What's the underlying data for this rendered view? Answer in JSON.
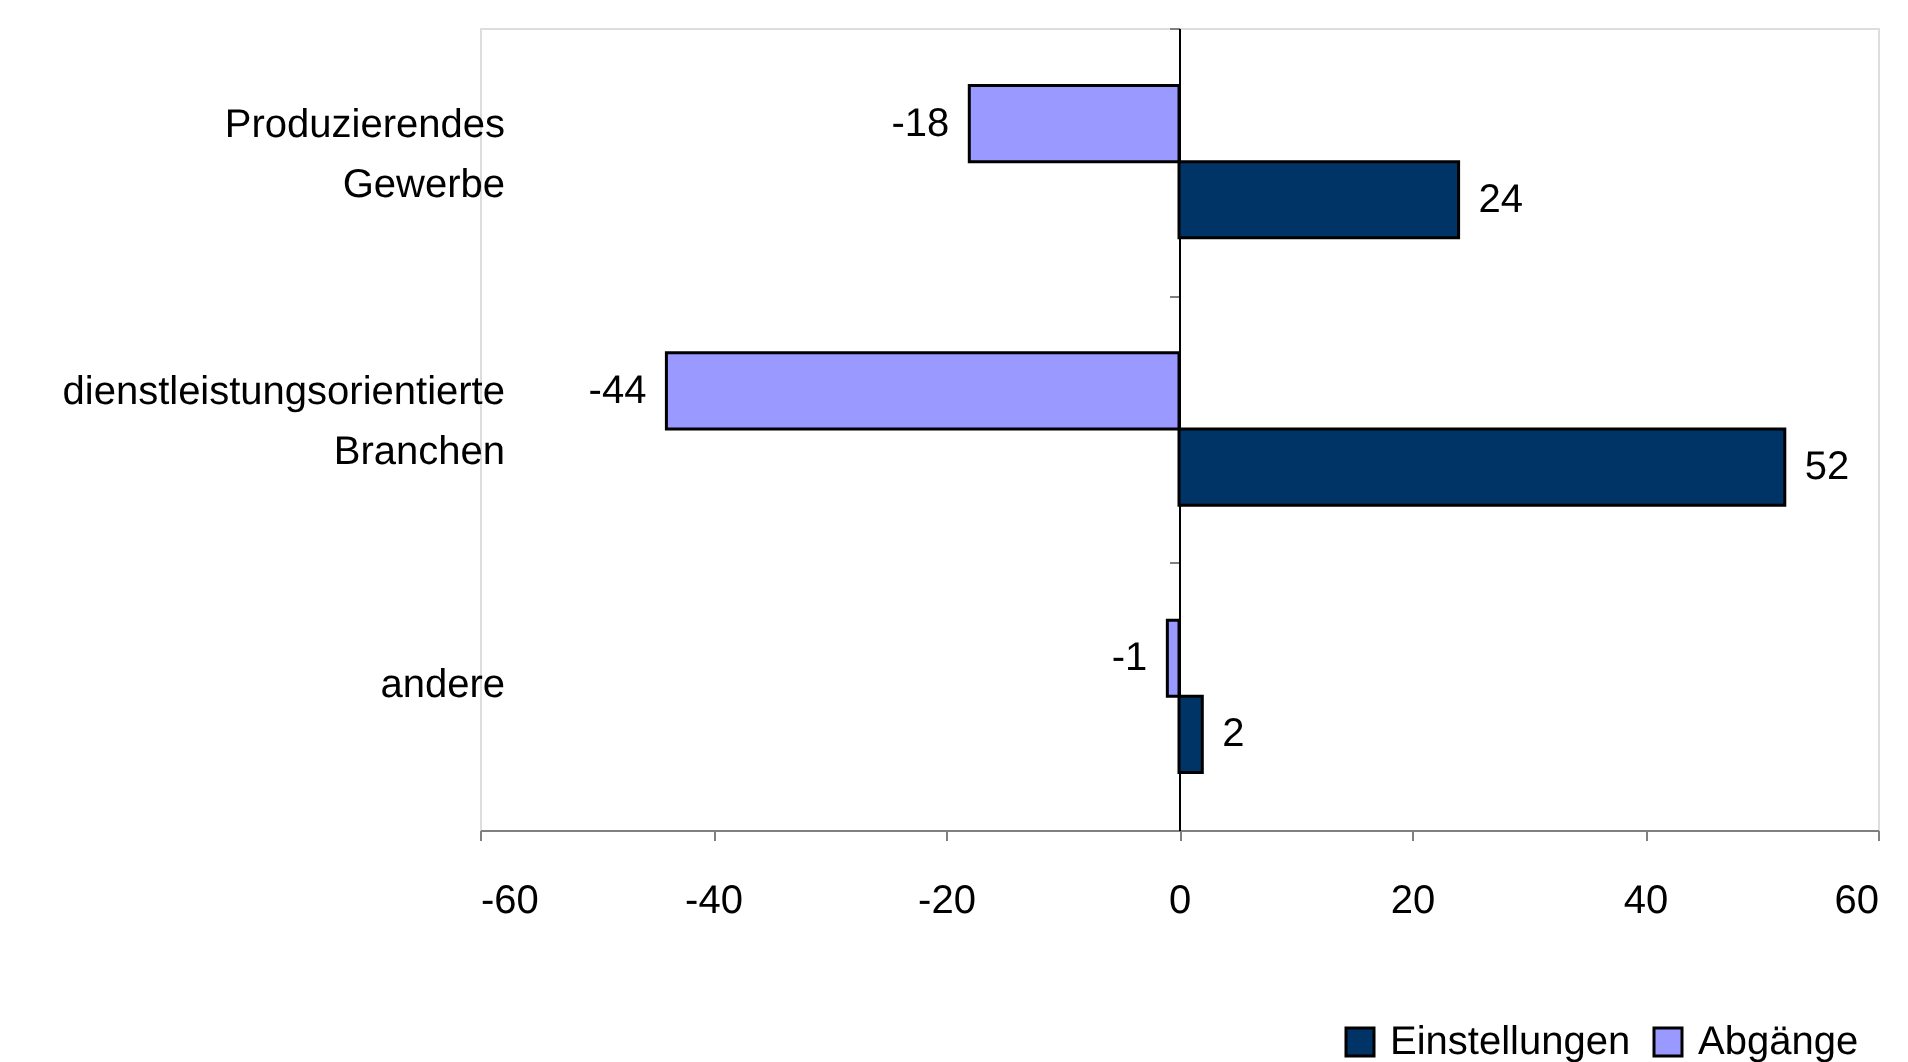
{
  "chart_data": {
    "type": "bar",
    "orientation": "horizontal",
    "categories": [
      "Produzierendes Gewerbe",
      "dienstleistungsorientierte Branchen",
      "andere"
    ],
    "series": [
      {
        "name": "Einstellungen",
        "color": "#003366",
        "values": [
          24,
          52,
          2
        ]
      },
      {
        "name": "Abgänge",
        "color": "#9999ff",
        "values": [
          -18,
          -44,
          -1
        ]
      }
    ],
    "xlim": [
      -60,
      60
    ],
    "xticks": [
      -60,
      -40,
      -20,
      0,
      20,
      40,
      60
    ],
    "data_labels": true,
    "legend": "bottom right"
  }
}
